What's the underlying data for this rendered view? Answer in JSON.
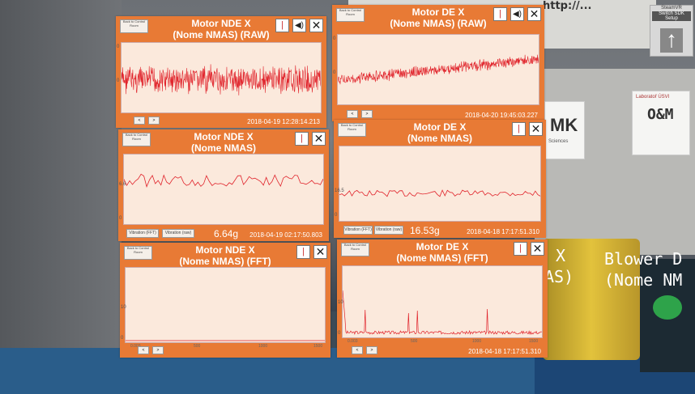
{
  "background": {
    "banner_text": "http://...",
    "om_sign": "O&M",
    "mk_sign": "MK",
    "sciences_text": "Sciences",
    "lab_text": "Laboratoř ÚSVI",
    "floating": {
      "text_x": "X",
      "text_as": "AS)",
      "blower_line1": "Blower D",
      "blower_line2": "(Nome NM"
    }
  },
  "steamvr": {
    "title": "SteamVR",
    "button": "Switch SDK Setup",
    "arrow": "↑"
  },
  "colors": {
    "panel": "#e87a35",
    "plot_bg": "#fbe9dc",
    "signal": "#e0222a"
  },
  "panels": [
    {
      "id": "nde-raw",
      "title_line1": "Motor NDE X",
      "title_line2": "(Nome NMAS) (RAW)",
      "back_label": "Back to Control Room",
      "ylabels": [
        "0",
        "0"
      ],
      "timestamp": "2018-04-19 12:28:14.213"
    },
    {
      "id": "de-raw",
      "title_line1": "Motor DE X",
      "title_line2": "(Nome NMAS) (RAW)",
      "back_label": "Back to Control Room",
      "ylabels": [
        "0",
        "0"
      ],
      "timestamp": "2018-04-20 19:45:03.227"
    },
    {
      "id": "nde-trend",
      "title_line1": "Motor NDE X",
      "title_line2": "(Nome NMAS)",
      "back_label": "Back to Control Room",
      "ylabels": [
        "6.6",
        "0"
      ],
      "btn1": "Vibration (FFT)",
      "btn2": "Vibration (raw)",
      "value": "6.64g",
      "timestamp": "2018-04-19 02:17:50.803"
    },
    {
      "id": "de-trend",
      "title_line1": "Motor DE X",
      "title_line2": "(Nome NMAS)",
      "back_label": "Back to Control Room",
      "ylabels": [
        "16.5",
        "0"
      ],
      "btn1": "Vibration (FFT)",
      "btn2": "Vibration (raw)",
      "value": "16.53g",
      "timestamp": "2018-04-18 17:17:51.310"
    },
    {
      "id": "nde-fft",
      "title_line1": "Motor NDE X",
      "title_line2": "(Nome NMAS) (FFT)",
      "back_label": "Back to Control Room",
      "ylabels": [
        "10",
        "0"
      ],
      "xlabels": [
        "0.003",
        "500",
        "1000",
        "1500"
      ],
      "timestamp": ""
    },
    {
      "id": "de-fft",
      "title_line1": "Motor DE X",
      "title_line2": "(Nome NMAS) (FFT)",
      "back_label": "Back to Control Room",
      "ylabels": [
        "10",
        "0"
      ],
      "xlabels": [
        "0.003",
        "500",
        "1000",
        "1500"
      ],
      "timestamp": "2018-04-18 17:17:51.310"
    }
  ]
}
